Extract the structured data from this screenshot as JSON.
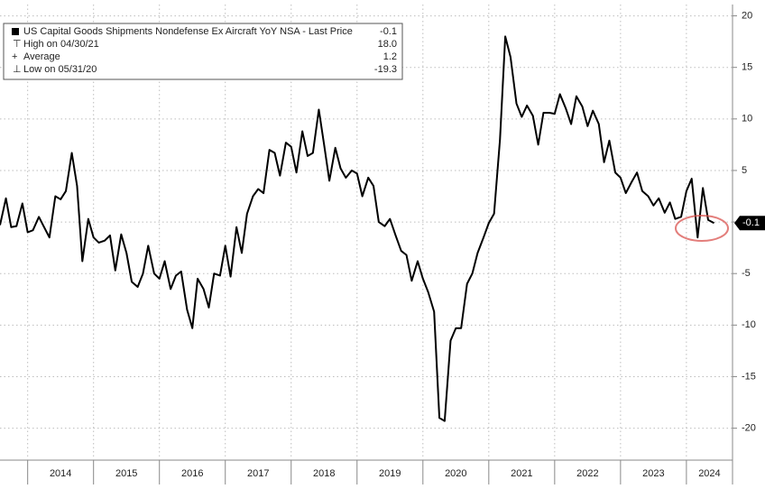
{
  "chart_data": {
    "type": "line",
    "legend": {
      "title": "US Capital Goods Shipments Nondefense Ex Aircraft YoY NSA - Last Price",
      "title_value": "-0.1",
      "stats": [
        {
          "label": "High on 04/30/21",
          "value": "18.0"
        },
        {
          "label": "Average",
          "value": "1.2"
        },
        {
          "label": "Low on 05/31/20",
          "value": "-19.3"
        }
      ]
    },
    "x": [
      2013.58,
      2013.67,
      2013.75,
      2013.83,
      2013.92,
      2014.0,
      2014.08,
      2014.17,
      2014.25,
      2014.33,
      2014.42,
      2014.5,
      2014.58,
      2014.67,
      2014.75,
      2014.83,
      2014.92,
      2015.0,
      2015.08,
      2015.17,
      2015.25,
      2015.33,
      2015.42,
      2015.5,
      2015.58,
      2015.67,
      2015.75,
      2015.83,
      2015.92,
      2016.0,
      2016.08,
      2016.17,
      2016.25,
      2016.33,
      2016.42,
      2016.5,
      2016.58,
      2016.67,
      2016.75,
      2016.83,
      2016.92,
      2017.0,
      2017.08,
      2017.17,
      2017.25,
      2017.33,
      2017.42,
      2017.5,
      2017.58,
      2017.67,
      2017.75,
      2017.83,
      2017.92,
      2018.0,
      2018.08,
      2018.17,
      2018.25,
      2018.33,
      2018.42,
      2018.5,
      2018.58,
      2018.67,
      2018.75,
      2018.83,
      2018.92,
      2019.0,
      2019.08,
      2019.17,
      2019.25,
      2019.33,
      2019.42,
      2019.5,
      2019.58,
      2019.67,
      2019.75,
      2019.83,
      2019.92,
      2020.0,
      2020.08,
      2020.17,
      2020.25,
      2020.33,
      2020.42,
      2020.5,
      2020.58,
      2020.67,
      2020.75,
      2020.83,
      2020.92,
      2021.0,
      2021.08,
      2021.17,
      2021.25,
      2021.33,
      2021.42,
      2021.5,
      2021.58,
      2021.67,
      2021.75,
      2021.83,
      2021.92,
      2022.0,
      2022.08,
      2022.17,
      2022.25,
      2022.33,
      2022.42,
      2022.5,
      2022.58,
      2022.67,
      2022.75,
      2022.83,
      2022.92,
      2023.0,
      2023.08,
      2023.17,
      2023.25,
      2023.33,
      2023.42,
      2023.5,
      2023.58,
      2023.67,
      2023.75,
      2023.83,
      2023.92,
      2024.0,
      2024.08,
      2024.17,
      2024.25,
      2024.33,
      2024.42
    ],
    "series": [
      {
        "color": "#000000",
        "values": [
          -0.3,
          2.3,
          -0.5,
          -0.4,
          1.8,
          -1.0,
          -0.8,
          0.5,
          -0.5,
          -1.5,
          2.5,
          2.2,
          3.0,
          6.7,
          3.5,
          -3.8,
          0.3,
          -1.5,
          -2.0,
          -1.8,
          -1.3,
          -4.7,
          -1.2,
          -3.0,
          -5.8,
          -6.3,
          -5.0,
          -2.3,
          -5.0,
          -5.5,
          -3.8,
          -6.5,
          -5.2,
          -4.8,
          -8.5,
          -10.3,
          -5.5,
          -6.5,
          -8.3,
          -5.0,
          -5.2,
          -2.3,
          -5.3,
          -0.5,
          -3.0,
          0.8,
          2.5,
          3.2,
          2.8,
          7.0,
          6.7,
          4.5,
          7.7,
          7.3,
          4.8,
          8.8,
          6.4,
          6.7,
          10.9,
          7.5,
          4.0,
          7.2,
          5.2,
          4.3,
          5.0,
          4.7,
          2.5,
          4.3,
          3.5,
          0.0,
          -0.4,
          0.3,
          -1.2,
          -2.8,
          -3.2,
          -5.7,
          -3.8,
          -5.5,
          -6.8,
          -8.7,
          -19.0,
          -19.3,
          -11.5,
          -10.3,
          -10.3,
          -6.0,
          -5.0,
          -3.0,
          -1.5,
          -0.1,
          0.8,
          8.0,
          18.0,
          16.0,
          11.5,
          10.2,
          11.3,
          10.3,
          7.5,
          10.6,
          10.6,
          10.5,
          12.4,
          11.0,
          9.5,
          12.2,
          11.2,
          9.3,
          10.8,
          9.5,
          5.8,
          7.9,
          4.8,
          4.3,
          2.8,
          3.9,
          4.8,
          3.0,
          2.5,
          1.6,
          2.3,
          0.9,
          1.9,
          0.3,
          0.5,
          3.0,
          4.2,
          -1.5,
          3.3,
          0.2,
          -0.1
        ]
      }
    ],
    "xlim": [
      2013.58,
      2024.7
    ],
    "xticks": [
      2014,
      2015,
      2016,
      2017,
      2018,
      2019,
      2020,
      2021,
      2022,
      2023,
      2024
    ],
    "ylim": [
      -23.1,
      21.1
    ],
    "yticks": [
      20,
      15,
      10,
      5,
      0,
      -5,
      -10,
      -15,
      -20
    ],
    "grid": true
  }
}
